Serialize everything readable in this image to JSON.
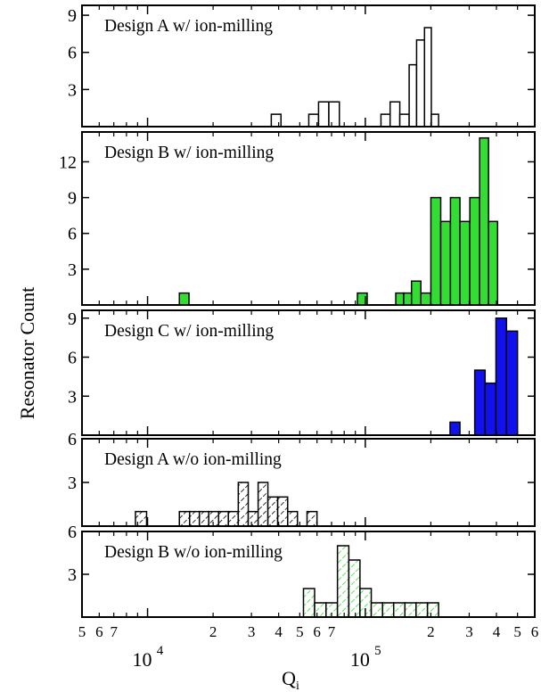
{
  "ylabel": "Resonator Count",
  "xlabel": "Q",
  "xlabel_sub": "i",
  "x_axis": {
    "scale": "log",
    "xlim": [
      5000,
      600000
    ],
    "minor_ticks": [
      {
        "value": 5000,
        "label": "5"
      },
      {
        "value": 6000,
        "label": "6"
      },
      {
        "value": 7000,
        "label": "7"
      },
      {
        "value": 8000,
        "label": ""
      },
      {
        "value": 9000,
        "label": ""
      },
      {
        "value": 20000,
        "label": "2"
      },
      {
        "value": 30000,
        "label": "3"
      },
      {
        "value": 40000,
        "label": "4"
      },
      {
        "value": 50000,
        "label": "5"
      },
      {
        "value": 60000,
        "label": "6"
      },
      {
        "value": 70000,
        "label": "7"
      },
      {
        "value": 80000,
        "label": ""
      },
      {
        "value": 90000,
        "label": ""
      },
      {
        "value": 200000,
        "label": "2"
      },
      {
        "value": 300000,
        "label": "3"
      },
      {
        "value": 400000,
        "label": "4"
      },
      {
        "value": 500000,
        "label": "5"
      },
      {
        "value": 600000,
        "label": "6"
      }
    ],
    "major_ticks": [
      {
        "value": 10000,
        "base": "10",
        "exp": "4"
      },
      {
        "value": 100000,
        "base": "10",
        "exp": "5"
      }
    ]
  },
  "chart_data": [
    {
      "type": "bar",
      "title": "Design A w/ ion-milling",
      "fill": "#ffffff",
      "hatch": false,
      "ylim": [
        0,
        9.8
      ],
      "yticks": [
        3,
        6,
        9
      ],
      "bins": [
        {
          "x0": 37000,
          "x1": 41000,
          "value": 1
        },
        {
          "x0": 55000,
          "x1": 61000,
          "value": 1
        },
        {
          "x0": 61000,
          "x1": 68000,
          "value": 2
        },
        {
          "x0": 68000,
          "x1": 76000,
          "value": 2
        },
        {
          "x0": 118000,
          "x1": 130000,
          "value": 1
        },
        {
          "x0": 130000,
          "x1": 144000,
          "value": 2
        },
        {
          "x0": 144000,
          "x1": 159000,
          "value": 1
        },
        {
          "x0": 159000,
          "x1": 172000,
          "value": 5
        },
        {
          "x0": 172000,
          "x1": 187000,
          "value": 7
        },
        {
          "x0": 187000,
          "x1": 201000,
          "value": 8
        },
        {
          "x0": 201000,
          "x1": 217000,
          "value": 1
        }
      ]
    },
    {
      "type": "bar",
      "title": "Design B w/ ion-milling",
      "fill": "#33dd33",
      "hatch": false,
      "ylim": [
        0,
        14.5
      ],
      "yticks": [
        3,
        6,
        9,
        12
      ],
      "bins": [
        {
          "x0": 14000,
          "x1": 15500,
          "value": 1
        },
        {
          "x0": 92000,
          "x1": 102000,
          "value": 1
        },
        {
          "x0": 138000,
          "x1": 150000,
          "value": 1
        },
        {
          "x0": 150000,
          "x1": 163000,
          "value": 1
        },
        {
          "x0": 163000,
          "x1": 180000,
          "value": 2
        },
        {
          "x0": 180000,
          "x1": 200000,
          "value": 1
        },
        {
          "x0": 200000,
          "x1": 222000,
          "value": 9
        },
        {
          "x0": 222000,
          "x1": 246000,
          "value": 7
        },
        {
          "x0": 246000,
          "x1": 272000,
          "value": 9
        },
        {
          "x0": 272000,
          "x1": 302000,
          "value": 7
        },
        {
          "x0": 302000,
          "x1": 335000,
          "value": 9
        },
        {
          "x0": 335000,
          "x1": 368000,
          "value": 14
        },
        {
          "x0": 368000,
          "x1": 405000,
          "value": 7
        }
      ]
    },
    {
      "type": "bar",
      "title": "Design C w/ ion-milling",
      "fill": "#1111ee",
      "hatch": false,
      "ylim": [
        0,
        9.6
      ],
      "yticks": [
        3,
        6,
        9
      ],
      "bins": [
        {
          "x0": 245000,
          "x1": 272000,
          "value": 1
        },
        {
          "x0": 318000,
          "x1": 355000,
          "value": 5
        },
        {
          "x0": 355000,
          "x1": 398000,
          "value": 4
        },
        {
          "x0": 398000,
          "x1": 445000,
          "value": 9
        },
        {
          "x0": 445000,
          "x1": 500000,
          "value": 8
        }
      ]
    },
    {
      "type": "bar",
      "title": "Design A w/o ion-milling",
      "fill": "#ffffff",
      "hatch": true,
      "hatch_color": "#000000",
      "ylim": [
        0,
        6
      ],
      "yticks": [
        3,
        6
      ],
      "bins": [
        {
          "x0": 8800,
          "x1": 9900,
          "value": 1
        },
        {
          "x0": 14000,
          "x1": 15600,
          "value": 1
        },
        {
          "x0": 15600,
          "x1": 17300,
          "value": 1
        },
        {
          "x0": 17300,
          "x1": 19100,
          "value": 1
        },
        {
          "x0": 19100,
          "x1": 21200,
          "value": 1
        },
        {
          "x0": 21200,
          "x1": 23500,
          "value": 1
        },
        {
          "x0": 23500,
          "x1": 26100,
          "value": 1
        },
        {
          "x0": 26100,
          "x1": 29000,
          "value": 3
        },
        {
          "x0": 29000,
          "x1": 32200,
          "value": 1
        },
        {
          "x0": 32200,
          "x1": 35700,
          "value": 3
        },
        {
          "x0": 35700,
          "x1": 39600,
          "value": 2
        },
        {
          "x0": 39600,
          "x1": 44000,
          "value": 2
        },
        {
          "x0": 44000,
          "x1": 48800,
          "value": 1
        },
        {
          "x0": 54000,
          "x1": 60000,
          "value": 1
        }
      ]
    },
    {
      "type": "bar",
      "title": "Design B w/o ion-milling",
      "fill": "#ffffff",
      "hatch": true,
      "hatch_color": "#33dd33",
      "ylim": [
        0,
        6
      ],
      "yticks": [
        3,
        6
      ],
      "bins": [
        {
          "x0": 52000,
          "x1": 58500,
          "value": 2
        },
        {
          "x0": 58500,
          "x1": 66000,
          "value": 1
        },
        {
          "x0": 66000,
          "x1": 74500,
          "value": 1
        },
        {
          "x0": 74500,
          "x1": 84000,
          "value": 5
        },
        {
          "x0": 84000,
          "x1": 94500,
          "value": 4
        },
        {
          "x0": 94500,
          "x1": 106500,
          "value": 2
        },
        {
          "x0": 106500,
          "x1": 120000,
          "value": 1
        },
        {
          "x0": 120000,
          "x1": 135000,
          "value": 1
        },
        {
          "x0": 135000,
          "x1": 152000,
          "value": 1
        },
        {
          "x0": 152000,
          "x1": 171000,
          "value": 1
        },
        {
          "x0": 171000,
          "x1": 193000,
          "value": 1
        },
        {
          "x0": 193000,
          "x1": 217000,
          "value": 1
        }
      ]
    }
  ]
}
